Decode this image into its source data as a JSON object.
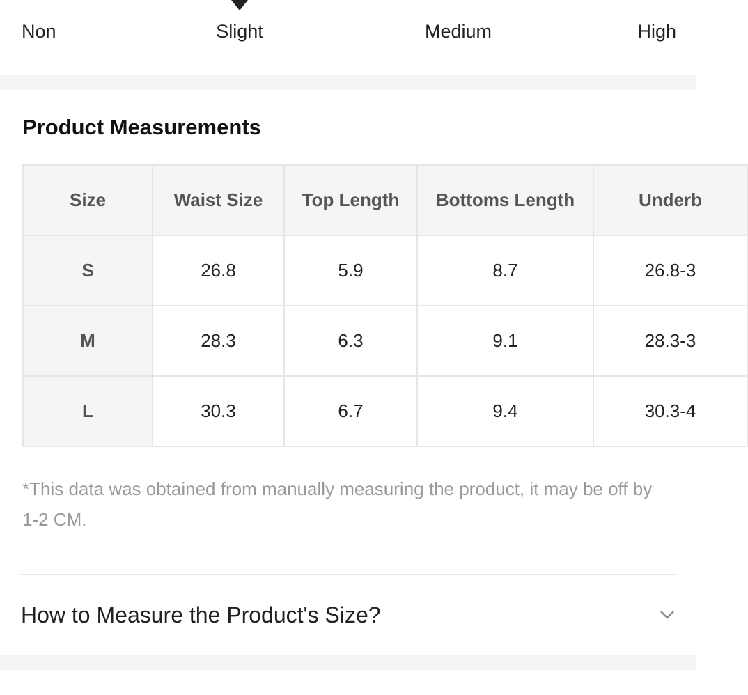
{
  "stretch": {
    "labels": [
      "Non",
      "Slight",
      "Medium",
      "High"
    ]
  },
  "measurements": {
    "title": "Product Measurements",
    "table": {
      "header": [
        "Size",
        "Waist Size",
        "Top Length",
        "Bottoms Length",
        "Underb"
      ],
      "rows": [
        [
          "S",
          "26.8",
          "5.9",
          "8.7",
          "26.8-3"
        ],
        [
          "M",
          "28.3",
          "6.3",
          "9.1",
          "28.3-3"
        ],
        [
          "L",
          "30.3",
          "6.7",
          "9.4",
          "30.3-4"
        ]
      ]
    },
    "note": "*This data was obtained from manually measuring the product, it may be off by 1-2 CM."
  },
  "accordion": {
    "title": "How to Measure the Product's Size?"
  }
}
